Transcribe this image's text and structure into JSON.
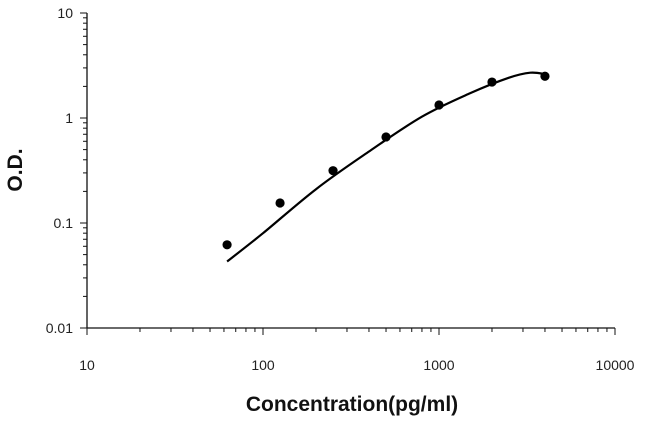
{
  "chart_data": {
    "type": "scatter",
    "title": "",
    "xlabel": "Concentration(pg/ml)",
    "ylabel": "O.D.",
    "x_scale": "log",
    "y_scale": "log",
    "xlim": [
      10,
      10000
    ],
    "ylim": [
      0.01,
      10
    ],
    "x_ticks": [
      "10",
      "100",
      "1000",
      "10000"
    ],
    "y_ticks": [
      "0.01",
      "0.1",
      "1",
      "10"
    ],
    "grid": false,
    "legend": "none",
    "series": [
      {
        "x": [
          62.5,
          125,
          250,
          500,
          1000,
          2000,
          4000
        ],
        "y": [
          0.062,
          0.155,
          0.315,
          0.66,
          1.33,
          2.2,
          2.5
        ]
      }
    ],
    "fit_curve": {
      "x": [
        62.5,
        100,
        200,
        400,
        800,
        1500,
        2500,
        3300,
        4000
      ],
      "y": [
        0.043,
        0.08,
        0.21,
        0.48,
        1.03,
        1.72,
        2.42,
        2.7,
        2.62
      ]
    },
    "colors": {
      "axis": "#111111",
      "markers": "#000000",
      "curve": "#000000"
    }
  }
}
